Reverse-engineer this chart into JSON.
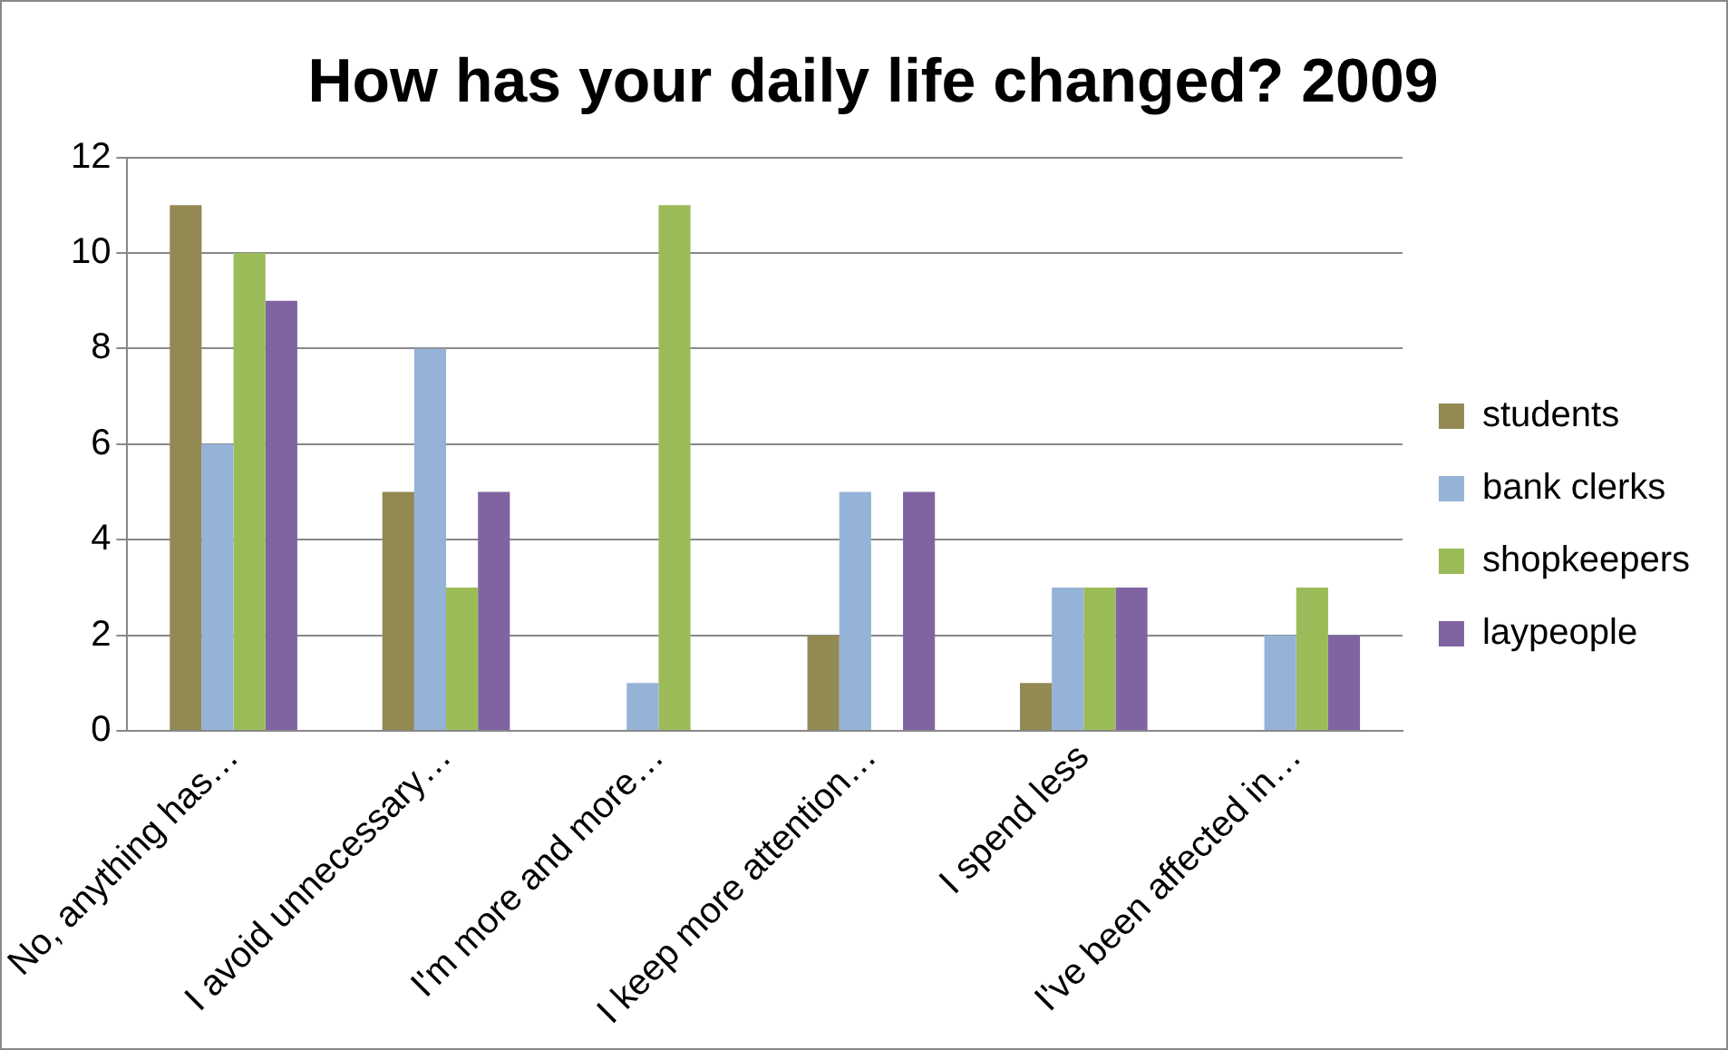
{
  "chart_data": {
    "type": "bar",
    "title": "How has your daily life changed? 2009",
    "categories": [
      "No, anything has…",
      "I avoid unnecessary…",
      "I'm more and more…",
      "I keep more attention…",
      "I spend less",
      "I've been affected in…"
    ],
    "series": [
      {
        "name": "students",
        "color": "#938953",
        "values": [
          11,
          5,
          0,
          2,
          1,
          0
        ]
      },
      {
        "name": "bank clerks",
        "color": "#95b3d7",
        "values": [
          6,
          8,
          1,
          5,
          3,
          2
        ]
      },
      {
        "name": "shopkeepers",
        "color": "#9bbb59",
        "values": [
          10,
          3,
          11,
          0,
          3,
          3
        ]
      },
      {
        "name": "laypeople",
        "color": "#8064a2",
        "values": [
          9,
          5,
          0,
          5,
          3,
          2
        ]
      }
    ],
    "ylim": [
      0,
      12
    ],
    "yticks": [
      0,
      2,
      4,
      6,
      8,
      10,
      12
    ],
    "grid": "y",
    "legend": "right"
  }
}
